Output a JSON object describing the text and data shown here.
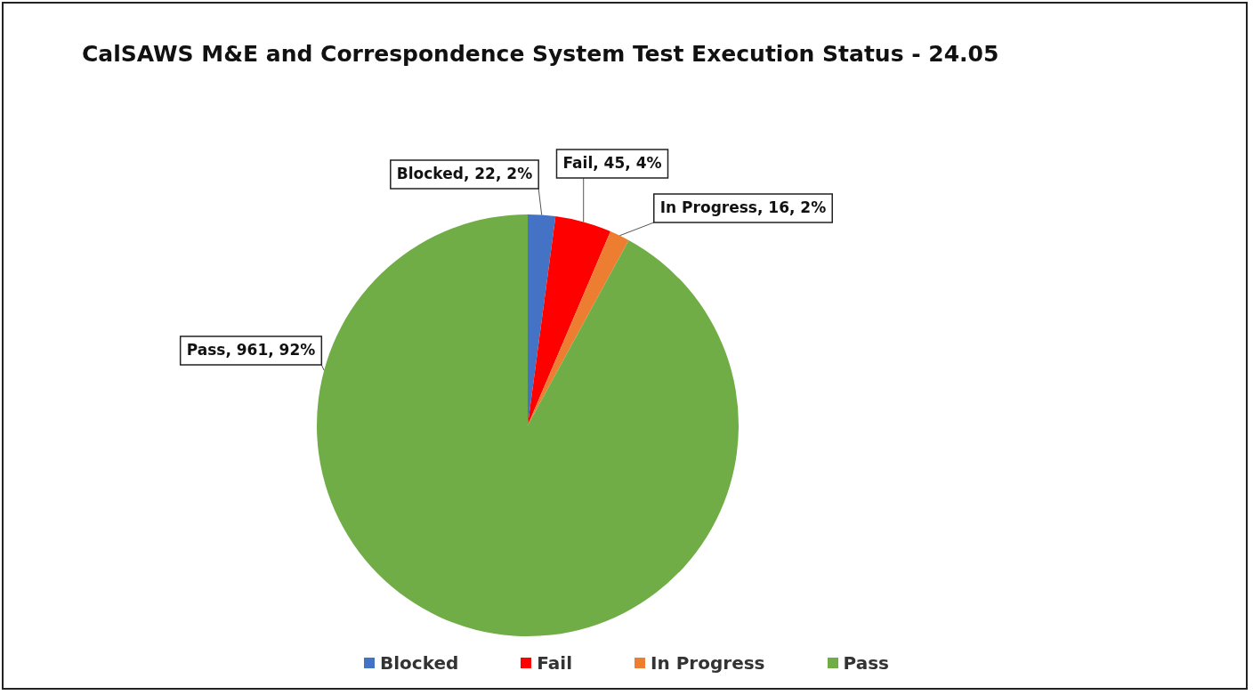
{
  "chart_data": {
    "type": "pie",
    "title": "CalSAWS M&E and Correspondence System Test Execution Status  - 24.05",
    "categories": [
      "Blocked",
      "Fail",
      "In Progress",
      "Pass"
    ],
    "values": [
      22,
      45,
      16,
      961
    ],
    "colors": [
      "#4472c4",
      "#ff0000",
      "#ed7d31",
      "#70ad47"
    ],
    "value_labels": [
      "Blocked, 22, 2%",
      "Fail, 45, 4%",
      "In Progress, 16, 2%",
      "Pass, 961, 92%"
    ],
    "legend": "bottom"
  }
}
